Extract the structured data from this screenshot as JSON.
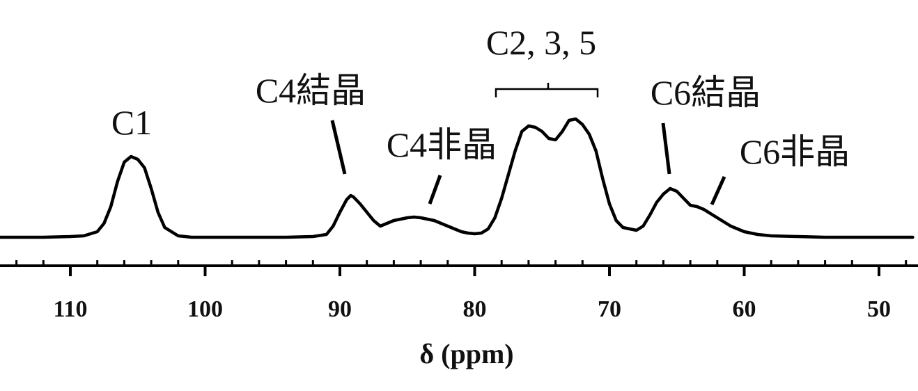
{
  "chart_data": {
    "type": "line",
    "title": "",
    "xlabel": "δ (ppm)",
    "ylabel": "",
    "x_reversed": true,
    "xlim": [
      116,
      47.5
    ],
    "ticks": [
      "110",
      "100",
      "90",
      "80",
      "70",
      "60",
      "50"
    ],
    "grid": false,
    "series": [
      {
        "x": [
          116,
          114,
          112,
          110,
          109,
          108,
          107.5,
          107,
          106.5,
          106,
          105.5,
          105,
          104.5,
          104,
          103.5,
          103,
          102,
          101,
          100,
          98,
          96,
          94,
          92,
          91,
          90.5,
          90,
          89.5,
          89.2,
          89,
          88.5,
          88,
          87.5,
          87,
          86.5,
          86,
          85.5,
          85,
          84.5,
          84,
          83.5,
          83,
          82.5,
          82,
          81.5,
          81,
          80.5,
          80,
          79.5,
          79,
          78.5,
          78,
          77.5,
          77,
          76.5,
          76,
          75.5,
          75,
          74.5,
          74,
          73.5,
          73,
          72.5,
          72,
          71.5,
          71,
          70.5,
          70,
          69.5,
          69,
          68.5,
          68,
          67.5,
          67,
          66.5,
          66,
          65.5,
          65,
          64.5,
          64,
          63.5,
          63,
          62.5,
          62,
          61.5,
          61,
          60,
          59,
          58,
          56,
          54,
          52,
          50,
          47.5
        ],
        "y": [
          0.0,
          0.0,
          0.0,
          0.005,
          0.01,
          0.04,
          0.1,
          0.22,
          0.4,
          0.54,
          0.58,
          0.56,
          0.5,
          0.35,
          0.18,
          0.07,
          0.01,
          0.0,
          0.0,
          0.0,
          0.0,
          0.0,
          0.005,
          0.02,
          0.08,
          0.18,
          0.27,
          0.3,
          0.29,
          0.24,
          0.18,
          0.12,
          0.08,
          0.1,
          0.12,
          0.13,
          0.14,
          0.145,
          0.14,
          0.13,
          0.12,
          0.1,
          0.08,
          0.06,
          0.04,
          0.03,
          0.025,
          0.03,
          0.06,
          0.14,
          0.28,
          0.45,
          0.62,
          0.76,
          0.8,
          0.79,
          0.76,
          0.71,
          0.7,
          0.76,
          0.84,
          0.85,
          0.81,
          0.74,
          0.62,
          0.42,
          0.24,
          0.12,
          0.07,
          0.06,
          0.05,
          0.08,
          0.16,
          0.25,
          0.31,
          0.35,
          0.33,
          0.28,
          0.23,
          0.22,
          0.2,
          0.17,
          0.14,
          0.11,
          0.08,
          0.04,
          0.02,
          0.01,
          0.005,
          0.0,
          0.0,
          0.0,
          0.0
        ]
      }
    ],
    "annotations": [
      {
        "text": "C1",
        "x": 105.5
      },
      {
        "text": "C4結晶",
        "x": 89.2
      },
      {
        "text": "C4非晶",
        "x": 84
      },
      {
        "text": "C2, 3, 5",
        "x": 74.5
      },
      {
        "text": "C6結晶",
        "x": 65.3
      },
      {
        "text": "C6非晶",
        "x": 62.5
      }
    ]
  }
}
